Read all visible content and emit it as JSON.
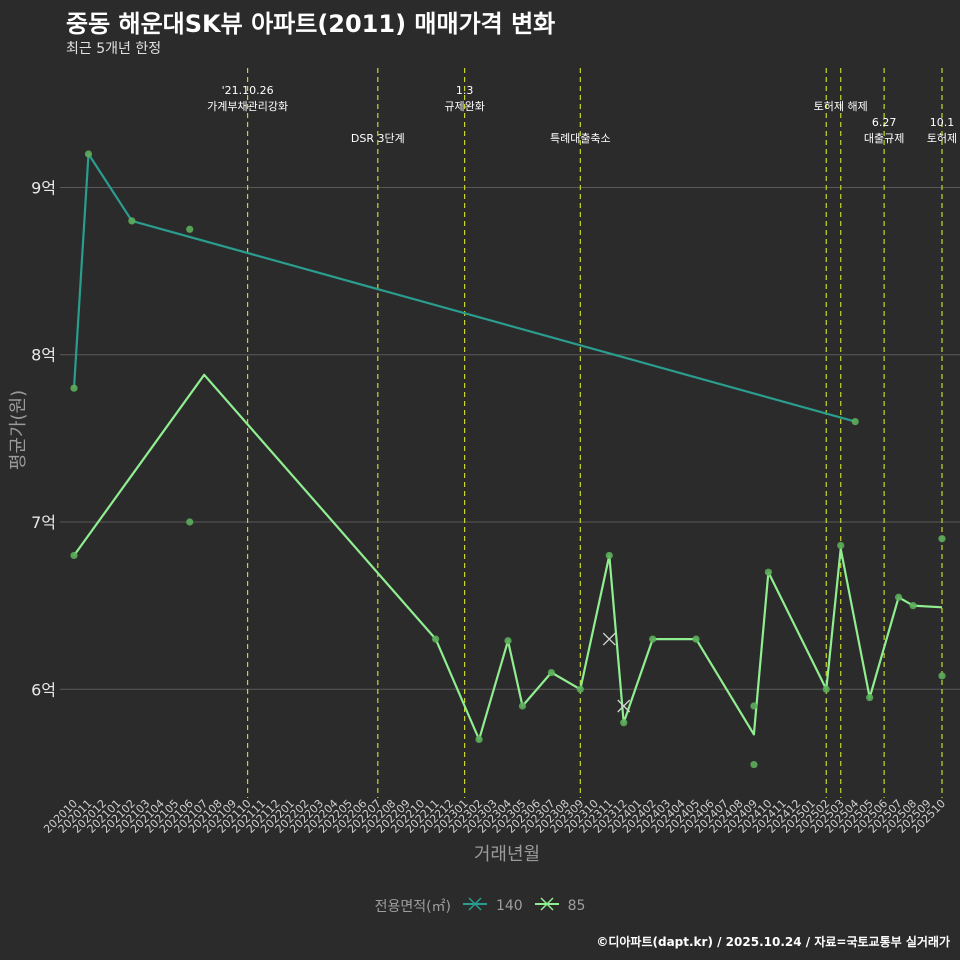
{
  "header": {
    "title": "중동 해운대SK뷰 아파트(2011) 매매가격 변화",
    "subtitle": "최근 5개년 한정"
  },
  "legend": {
    "title": "전용면적(㎡)",
    "items": [
      "140",
      "85"
    ]
  },
  "caption": "©디아파트(dapt.kr) / 2025.10.24 / 자료=국토교통부 실거래가",
  "colors": {
    "background": "#2b2b2b",
    "series_140": "#2a9d8f",
    "series_85": "#90ee90",
    "event_line": "#c8d62b",
    "grid": "#5a5a5a"
  },
  "chart_data": {
    "type": "line",
    "title": "중동 해운대SK뷰 아파트(2011) 매매가격 변화",
    "subtitle": "최근 5개년 한정",
    "xlabel": "거래년월",
    "ylabel": "평균가(원)",
    "ylim": [
      5.35,
      9.75
    ],
    "yticks": [
      6,
      7,
      8,
      9
    ],
    "ytick_labels": [
      "6억",
      "7억",
      "8억",
      "9억"
    ],
    "x_categories": [
      "202010",
      "202011",
      "202012",
      "202101",
      "202102",
      "202103",
      "202104",
      "202105",
      "202106",
      "202107",
      "202108",
      "202109",
      "202110",
      "202111",
      "202112",
      "202201",
      "202202",
      "202203",
      "202204",
      "202205",
      "202206",
      "202207",
      "202208",
      "202209",
      "202210",
      "202211",
      "202212",
      "202301",
      "202302",
      "202303",
      "202304",
      "202305",
      "202306",
      "202307",
      "202308",
      "202309",
      "202310",
      "202311",
      "202312",
      "202401",
      "202402",
      "202403",
      "202404",
      "202405",
      "202406",
      "202407",
      "202408",
      "202409",
      "202410",
      "202411",
      "202412",
      "202501",
      "202502",
      "202503",
      "202504",
      "202505",
      "202506",
      "202507",
      "202508",
      "202509",
      "202510"
    ],
    "series": [
      {
        "name": "140",
        "line": [
          [
            "202010",
            7.8
          ],
          [
            "202011",
            9.2
          ],
          [
            "202102",
            8.8
          ],
          [
            "202504",
            7.6
          ]
        ],
        "points": [
          [
            "202010",
            7.8
          ],
          [
            "202011",
            9.2
          ],
          [
            "202102",
            8.8
          ],
          [
            "202106",
            8.75
          ],
          [
            "202504",
            7.6
          ]
        ]
      },
      {
        "name": "85",
        "line": [
          [
            "202010",
            6.8
          ],
          [
            "202107",
            7.88
          ],
          [
            "202211",
            6.3
          ],
          [
            "202302",
            5.7
          ],
          [
            "202304",
            6.29
          ],
          [
            "202305",
            5.9
          ],
          [
            "202307",
            6.1
          ],
          [
            "202309",
            6.0
          ],
          [
            "202311",
            6.8
          ],
          [
            "202312",
            5.8
          ],
          [
            "202402",
            6.3
          ],
          [
            "202405",
            6.3
          ],
          [
            "202409",
            5.73
          ],
          [
            "202410",
            6.7
          ],
          [
            "202502",
            6.0
          ],
          [
            "202503",
            6.84
          ],
          [
            "202505",
            5.95
          ],
          [
            "202507",
            6.55
          ],
          [
            "202508",
            6.5
          ],
          [
            "202510",
            6.49
          ]
        ],
        "points": [
          [
            "202010",
            6.8
          ],
          [
            "202106",
            7.0
          ],
          [
            "202211",
            6.3
          ],
          [
            "202302",
            5.7
          ],
          [
            "202304",
            6.29
          ],
          [
            "202305",
            5.9
          ],
          [
            "202307",
            6.1
          ],
          [
            "202309",
            6.0
          ],
          [
            "202311",
            6.8
          ],
          [
            "202312",
            5.8
          ],
          [
            "202402",
            6.3
          ],
          [
            "202405",
            6.3
          ],
          [
            "202409",
            5.9
          ],
          [
            "202409",
            5.55
          ],
          [
            "202410",
            6.7
          ],
          [
            "202502",
            6.0
          ],
          [
            "202503",
            6.86
          ],
          [
            "202505",
            5.95
          ],
          [
            "202507",
            6.55
          ],
          [
            "202508",
            6.5
          ],
          [
            "202510",
            6.9
          ],
          [
            "202510",
            6.08
          ]
        ],
        "x_marks": [
          [
            "202311",
            6.3
          ],
          [
            "202312",
            5.9
          ]
        ]
      }
    ],
    "events": [
      {
        "date": "202110",
        "lines": [
          "'21.10.26",
          "가계부채관리강화"
        ],
        "row": 1
      },
      {
        "date": "202207",
        "lines": [
          "DSR 3단계"
        ],
        "row": 2
      },
      {
        "date": "202301",
        "lines": [
          "1.3",
          "규제완화"
        ],
        "row": 1
      },
      {
        "date": "202309",
        "lines": [
          "특례대출축소"
        ],
        "row": 2
      },
      {
        "date": "202502",
        "lines": [],
        "row": 1
      },
      {
        "date": "202503",
        "lines": [
          "토허제 해제"
        ],
        "row": 1
      },
      {
        "date": "202506",
        "lines": [
          "6.27",
          "대출규제"
        ],
        "row": 2
      },
      {
        "date": "202510",
        "lines": [
          "10.1",
          "토허제"
        ],
        "row": 2
      }
    ]
  }
}
